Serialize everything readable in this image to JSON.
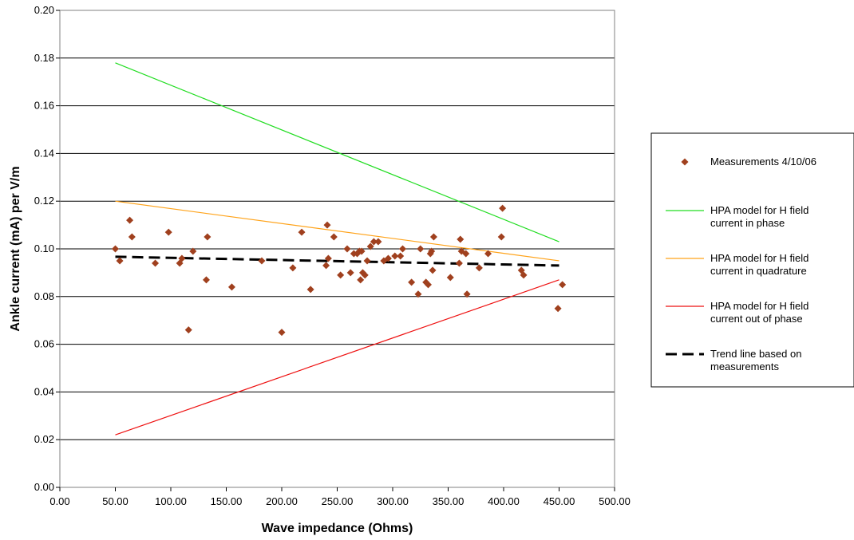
{
  "chart_data": {
    "type": "scatter",
    "title": "",
    "xlabel": "Wave impedance (Ohms)",
    "ylabel": "Ankle current (mA) per V/m",
    "xlim": [
      0,
      500
    ],
    "ylim": [
      0,
      0.2
    ],
    "x_ticks": [
      "0.00",
      "50.00",
      "100.00",
      "150.00",
      "200.00",
      "250.00",
      "300.00",
      "350.00",
      "400.00",
      "450.00",
      "500.00"
    ],
    "y_ticks": [
      "0.00",
      "0.02",
      "0.04",
      "0.06",
      "0.08",
      "0.10",
      "0.12",
      "0.14",
      "0.16",
      "0.18",
      "0.20"
    ],
    "grid": "horizontal",
    "legend_position": "right",
    "measurements": {
      "name": "Measurements 4/10/06",
      "color": "#A0401E",
      "marker": "diamond",
      "points": [
        [
          50,
          0.1
        ],
        [
          54,
          0.095
        ],
        [
          63,
          0.112
        ],
        [
          65,
          0.105
        ],
        [
          86,
          0.094
        ],
        [
          98,
          0.107
        ],
        [
          108,
          0.094
        ],
        [
          110,
          0.096
        ],
        [
          116,
          0.066
        ],
        [
          120,
          0.099
        ],
        [
          132,
          0.087
        ],
        [
          133,
          0.105
        ],
        [
          155,
          0.084
        ],
        [
          182,
          0.095
        ],
        [
          200,
          0.065
        ],
        [
          210,
          0.092
        ],
        [
          218,
          0.107
        ],
        [
          226,
          0.083
        ],
        [
          240,
          0.093
        ],
        [
          241,
          0.11
        ],
        [
          242,
          0.096
        ],
        [
          247,
          0.105
        ],
        [
          253,
          0.089
        ],
        [
          259,
          0.1
        ],
        [
          262,
          0.09
        ],
        [
          265,
          0.098
        ],
        [
          268,
          0.098
        ],
        [
          270,
          0.099
        ],
        [
          271,
          0.087
        ],
        [
          272,
          0.099
        ],
        [
          273,
          0.09
        ],
        [
          275,
          0.089
        ],
        [
          277,
          0.095
        ],
        [
          280,
          0.101
        ],
        [
          283,
          0.103
        ],
        [
          287,
          0.103
        ],
        [
          292,
          0.095
        ],
        [
          296,
          0.096
        ],
        [
          302,
          0.097
        ],
        [
          307,
          0.097
        ],
        [
          309,
          0.1
        ],
        [
          317,
          0.086
        ],
        [
          323,
          0.081
        ],
        [
          325,
          0.1
        ],
        [
          330,
          0.086
        ],
        [
          332,
          0.085
        ],
        [
          334,
          0.098
        ],
        [
          335,
          0.099
        ],
        [
          336,
          0.091
        ],
        [
          337,
          0.105
        ],
        [
          352,
          0.088
        ],
        [
          360,
          0.094
        ],
        [
          361,
          0.104
        ],
        [
          362,
          0.099
        ],
        [
          366,
          0.098
        ],
        [
          367,
          0.081
        ],
        [
          378,
          0.092
        ],
        [
          386,
          0.098
        ],
        [
          398,
          0.105
        ],
        [
          399,
          0.117
        ],
        [
          416,
          0.091
        ],
        [
          418,
          0.089
        ],
        [
          449,
          0.075
        ],
        [
          453,
          0.085
        ]
      ]
    },
    "lines": [
      {
        "name": "HPA model for H field current in phase",
        "label_lines": [
          "HPA model for H field",
          "current in phase"
        ],
        "color": "#22DD22",
        "dash": "solid",
        "x": [
          50,
          450
        ],
        "y": [
          0.178,
          0.103
        ]
      },
      {
        "name": "HPA model for H field current in quadrature",
        "label_lines": [
          "HPA model for H field",
          "current in quadrature"
        ],
        "color": "#FFA31A",
        "dash": "solid",
        "x": [
          50,
          450
        ],
        "y": [
          0.12,
          0.095
        ]
      },
      {
        "name": "HPA model for H field current out of phase",
        "label_lines": [
          "HPA model for H field",
          "current out of phase"
        ],
        "color": "#EE1111",
        "dash": "solid",
        "x": [
          50,
          450
        ],
        "y": [
          0.022,
          0.087
        ]
      },
      {
        "name": "Trend line based on measurements",
        "label_lines": [
          "Trend line based on",
          "measurements"
        ],
        "color": "#000000",
        "dash": "dashed",
        "x": [
          50,
          450
        ],
        "y": [
          0.0967,
          0.093
        ]
      }
    ]
  }
}
